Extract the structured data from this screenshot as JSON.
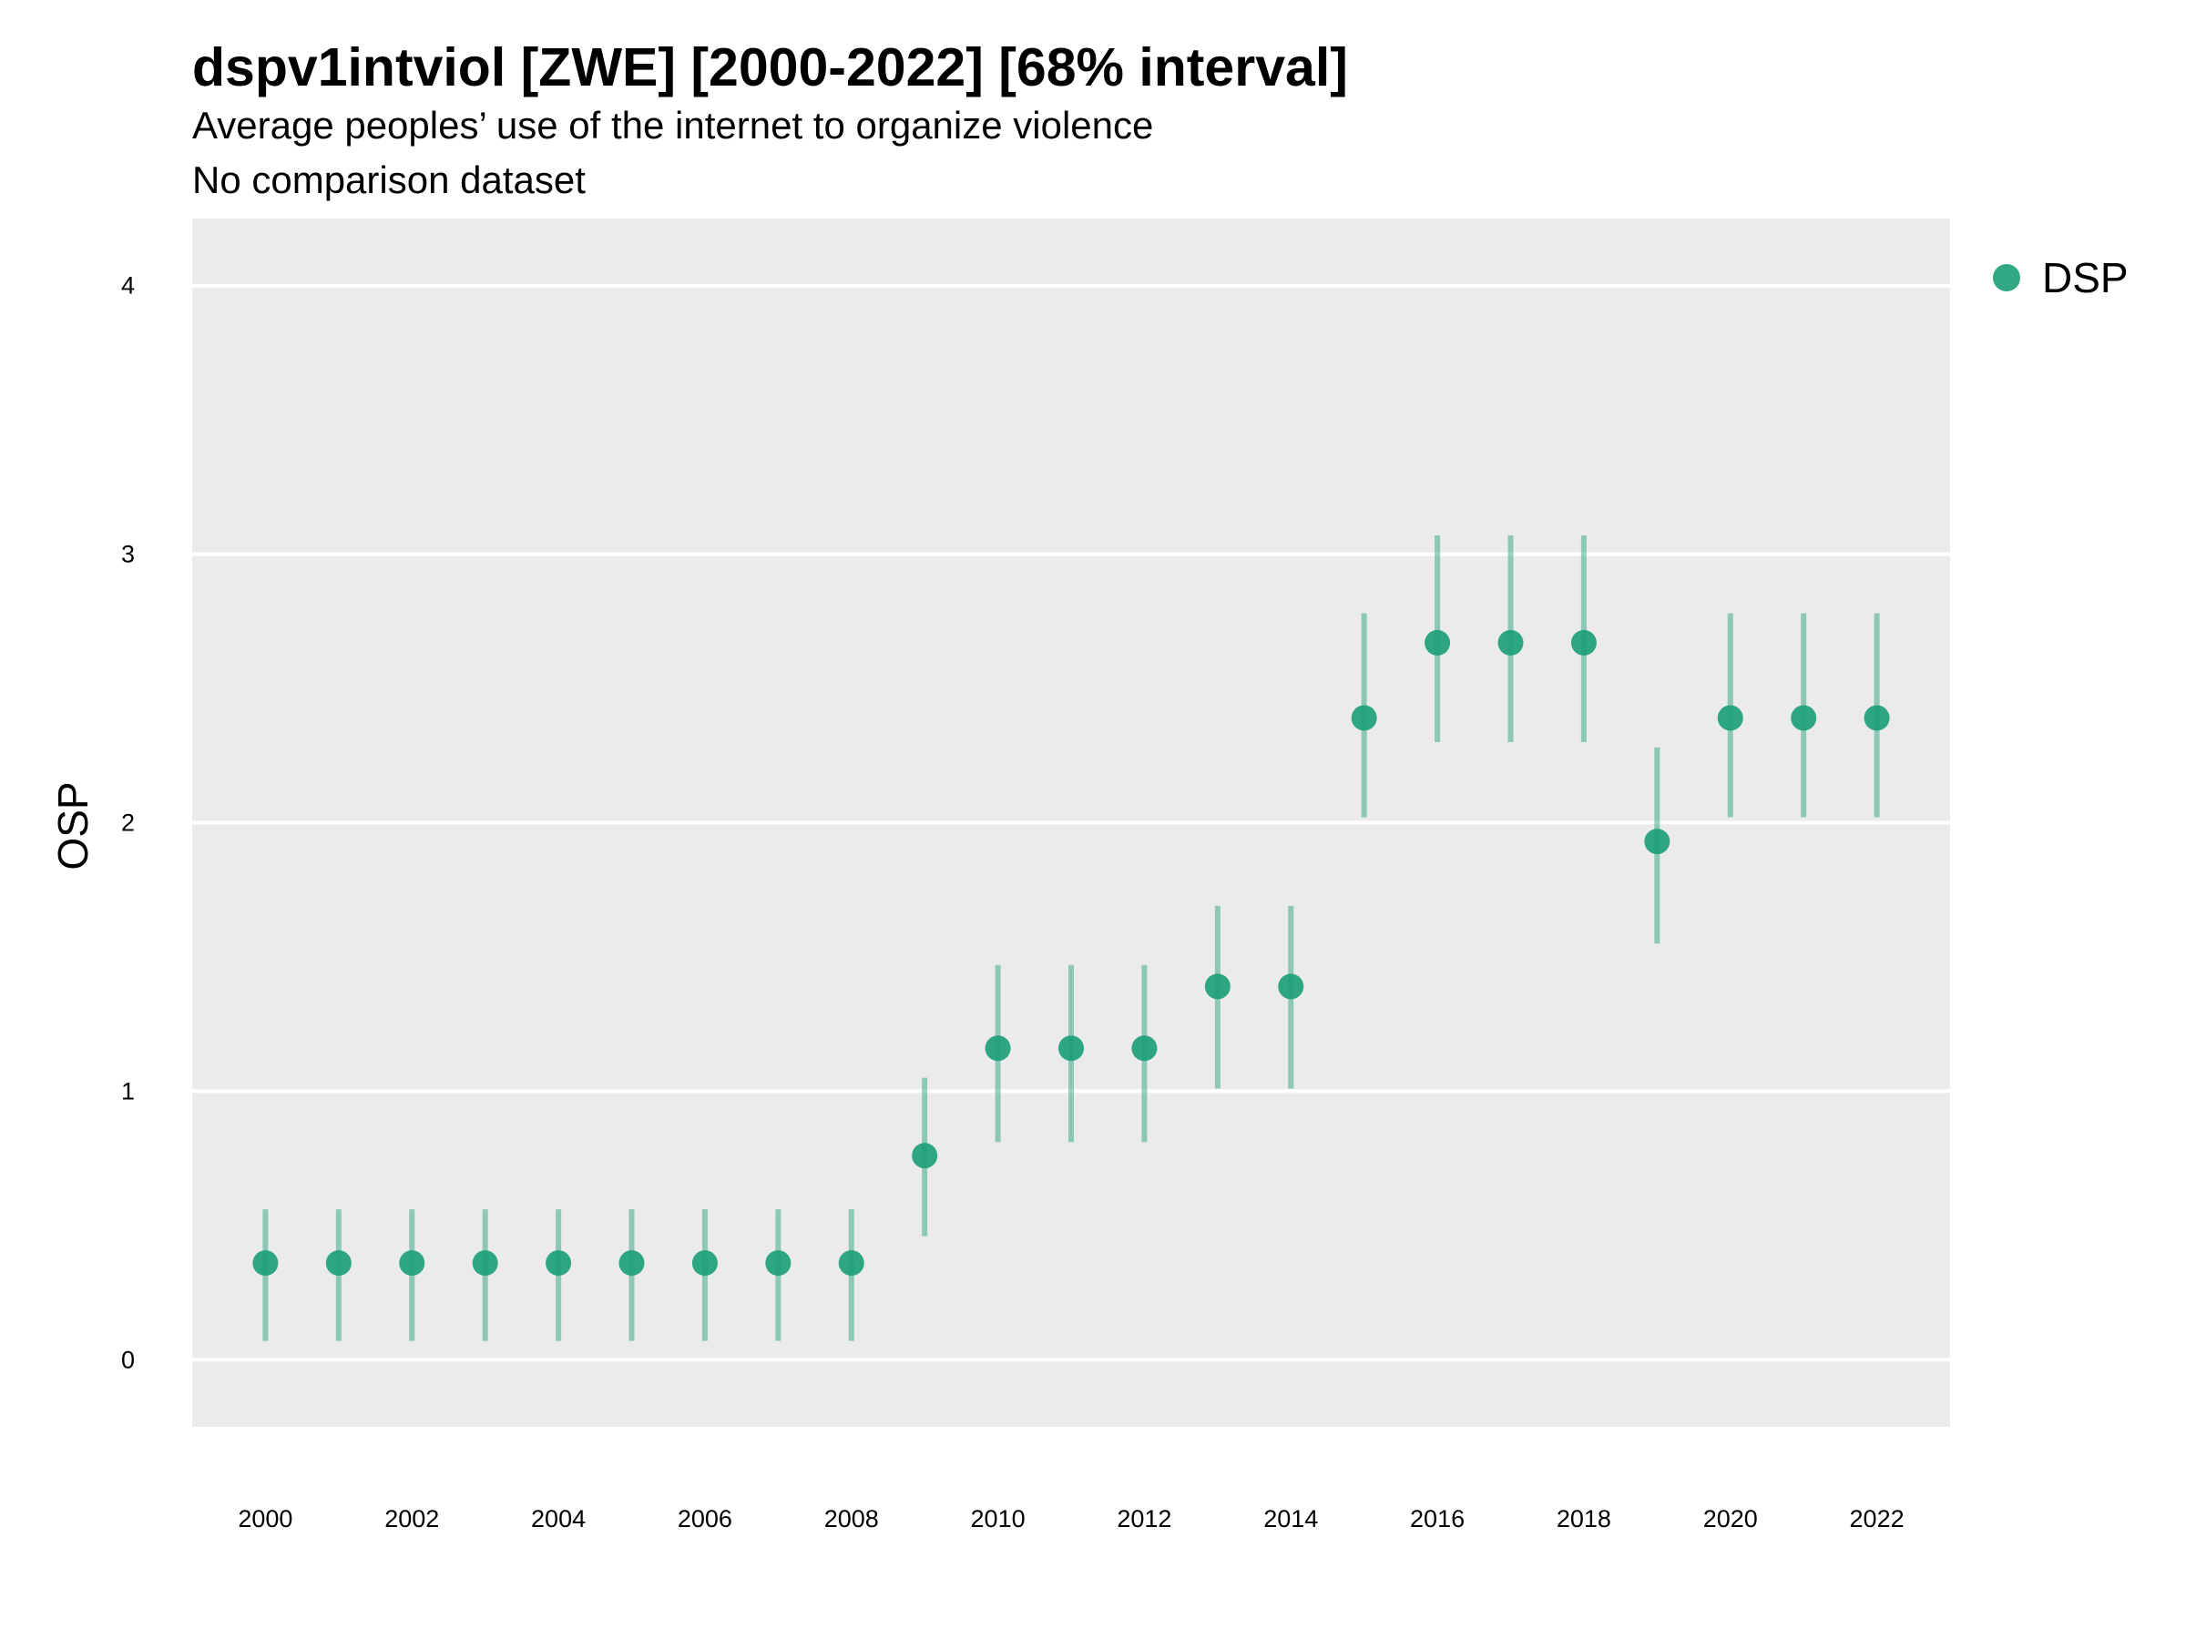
{
  "header": {
    "title": "dspv1intviol [ZWE] [2000-2022] [68% interval]",
    "subtitle": "Average peoples’ use of the internet to organize violence",
    "subtitle2": "No comparison dataset"
  },
  "legend": {
    "label": "DSP",
    "color": "#1b9e77"
  },
  "chart_data": {
    "type": "scatter",
    "title": "dspv1intviol [ZWE] [2000-2022] [68% interval]",
    "ylabel": "OSP",
    "xlabel": "",
    "ylim": [
      -0.25,
      4.25
    ],
    "xlim": [
      1999.0,
      2023.0
    ],
    "yticks": [
      0,
      1,
      2,
      3,
      4
    ],
    "xticks": [
      2000,
      2002,
      2004,
      2006,
      2008,
      2010,
      2012,
      2014,
      2016,
      2018,
      2020,
      2022
    ],
    "grid": true,
    "background": "#ebebeb",
    "legend_position": "top-right",
    "series": [
      {
        "name": "DSP",
        "color": "#1b9e77",
        "x": [
          2000,
          2001,
          2002,
          2003,
          2004,
          2005,
          2006,
          2007,
          2008,
          2009,
          2010,
          2011,
          2012,
          2013,
          2014,
          2015,
          2016,
          2017,
          2018,
          2019,
          2020,
          2021,
          2022
        ],
        "y": [
          0.36,
          0.36,
          0.36,
          0.36,
          0.36,
          0.36,
          0.36,
          0.36,
          0.36,
          0.76,
          1.16,
          1.16,
          1.16,
          1.39,
          1.39,
          2.39,
          2.67,
          2.67,
          2.67,
          1.93,
          2.39,
          2.39,
          2.39
        ],
        "lower": [
          0.07,
          0.07,
          0.07,
          0.07,
          0.07,
          0.07,
          0.07,
          0.07,
          0.07,
          0.46,
          0.81,
          0.81,
          0.81,
          1.01,
          1.01,
          2.02,
          2.3,
          2.3,
          2.3,
          1.55,
          2.02,
          2.02,
          2.02
        ],
        "upper": [
          0.56,
          0.56,
          0.56,
          0.56,
          0.56,
          0.56,
          0.56,
          0.56,
          0.56,
          1.05,
          1.47,
          1.47,
          1.47,
          1.69,
          1.69,
          2.78,
          3.07,
          3.07,
          3.07,
          2.28,
          2.78,
          2.78,
          2.78
        ]
      }
    ]
  }
}
